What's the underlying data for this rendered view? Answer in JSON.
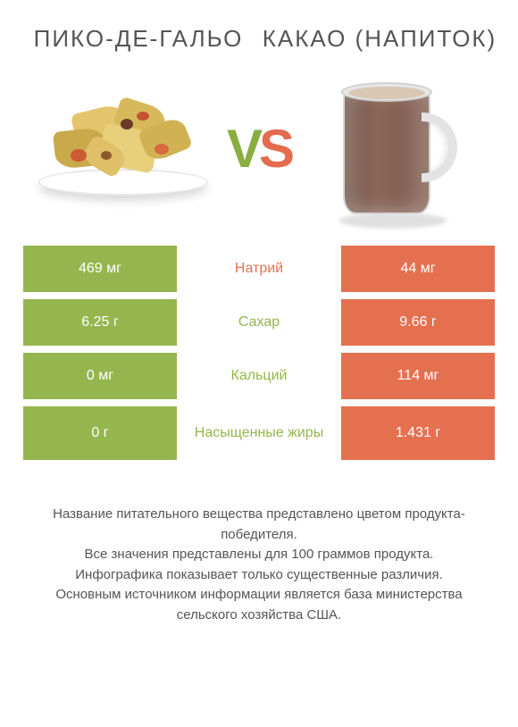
{
  "colors": {
    "green": "#95b64e",
    "orange": "#e5704f",
    "green_text": "#8aad3f",
    "orange_text": "#e36b4e",
    "title_text": "#555555",
    "white": "#ffffff"
  },
  "left_product": {
    "title": "ПИКО-ДЕ-ГАЛЬО"
  },
  "right_product": {
    "title": "КАКАО (НАПИТОК)"
  },
  "vs": {
    "v": "V",
    "s": "S"
  },
  "rows": [
    {
      "name": "Натрий",
      "left": "469 мг",
      "right": "44 мг",
      "winner": "left",
      "multiline": false
    },
    {
      "name": "Сахар",
      "left": "6.25 г",
      "right": "9.66 г",
      "winner": "right",
      "multiline": false
    },
    {
      "name": "Кальций",
      "left": "0 мг",
      "right": "114 мг",
      "winner": "right",
      "multiline": false
    },
    {
      "name": "Насыщенные жиры",
      "left": "0 г",
      "right": "1.431 г",
      "winner": "right",
      "multiline": true
    }
  ],
  "footer": {
    "l1": "Название питательного вещества представлено цветом продукта-победителя.",
    "l2": "Все значения представлены для 100 граммов продукта.",
    "l3": "Инфографика показывает только существенные различия.",
    "l4": "Основным источником информации является база министерства сельского хозяйства США."
  }
}
